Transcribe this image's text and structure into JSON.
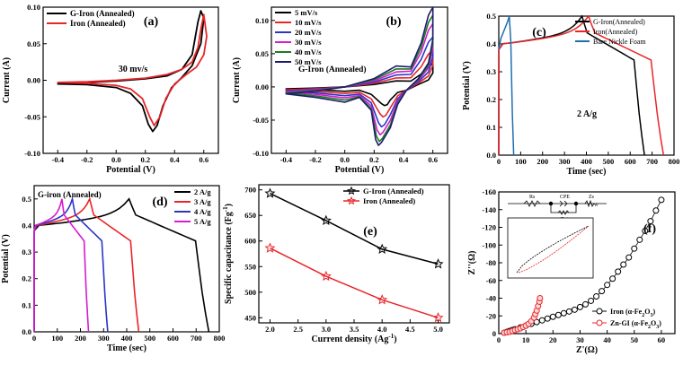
{
  "figure": {
    "description_title": "Electrochemical characterization panels"
  },
  "chart_data": [
    {
      "panel": "(a)",
      "type": "line",
      "subtype": "cv",
      "annotation": "30 mv/s",
      "xlabel": "Potential (V)",
      "ylabel": "Current (A)",
      "xlim": [
        -0.5,
        0.7
      ],
      "ylim": [
        -0.1,
        0.1
      ],
      "xticks": [
        -0.4,
        -0.2,
        0.0,
        0.2,
        0.4,
        0.6
      ],
      "xtick_labels": [
        "-0.4",
        "-0.2",
        "0.0",
        "0.2",
        "0.4",
        "0.6"
      ],
      "yticks": [
        -0.1,
        -0.05,
        0.0,
        0.05,
        0.1
      ],
      "ytick_labels": [
        "-0.10",
        "-0.05",
        "0.00",
        "0.05",
        "0.10"
      ],
      "legend": "top-left",
      "series": [
        {
          "name": "G-Iron (Annealed)",
          "color": "#000000",
          "x": [
            -0.4,
            -0.2,
            0.0,
            0.2,
            0.35,
            0.45,
            0.52,
            0.56,
            0.58,
            0.6,
            0.58,
            0.52,
            0.45,
            0.38,
            0.32,
            0.28,
            0.25,
            0.22,
            0.18,
            0.1,
            0.0,
            -0.2,
            -0.4
          ],
          "y": [
            -0.005,
            -0.003,
            -0.001,
            0.002,
            0.006,
            0.015,
            0.035,
            0.08,
            0.095,
            0.085,
            0.05,
            0.02,
            0.004,
            -0.01,
            -0.035,
            -0.062,
            -0.07,
            -0.06,
            -0.035,
            -0.018,
            -0.01,
            -0.006,
            -0.005
          ]
        },
        {
          "name": "Iron (Annealed)",
          "color": "#e8262a",
          "x": [
            -0.4,
            -0.2,
            0.0,
            0.2,
            0.35,
            0.45,
            0.52,
            0.56,
            0.58,
            0.6,
            0.62,
            0.6,
            0.55,
            0.48,
            0.4,
            0.34,
            0.3,
            0.26,
            0.23,
            0.18,
            0.1,
            0.0,
            -0.2,
            -0.4
          ],
          "y": [
            -0.003,
            -0.002,
            0.0,
            0.003,
            0.008,
            0.015,
            0.025,
            0.045,
            0.07,
            0.09,
            0.06,
            0.035,
            0.018,
            0.008,
            -0.005,
            -0.025,
            -0.05,
            -0.062,
            -0.05,
            -0.025,
            -0.012,
            -0.007,
            -0.004,
            -0.003
          ]
        }
      ]
    },
    {
      "panel": "(b)",
      "type": "line",
      "subtype": "cv",
      "annotation": "G-Iron (Annealed)",
      "xlabel": "Potential (V)",
      "ylabel": "Current (A)",
      "xlim": [
        -0.5,
        0.7
      ],
      "ylim": [
        -0.1,
        0.12
      ],
      "xticks": [
        -0.4,
        -0.2,
        0.0,
        0.2,
        0.4,
        0.6
      ],
      "xtick_labels": [
        "-0.4",
        "-0.2",
        "0.0",
        "0.2",
        "0.4",
        "0.6"
      ],
      "yticks": [
        -0.1,
        -0.05,
        0.0,
        0.05,
        0.1
      ],
      "ytick_labels": [
        "-0.10",
        "-0.05",
        "0.00",
        "0.05",
        "0.10"
      ],
      "legend": "top-left",
      "series": [
        {
          "name": "5 mV/s",
          "color": "#000000",
          "peak_anodic": 0.035,
          "peak_cathodic": -0.028,
          "cathodic_x": 0.27
        },
        {
          "name": "10 mV/s",
          "color": "#e8262a",
          "peak_anodic": 0.055,
          "peak_cathodic": -0.045,
          "cathodic_x": 0.26
        },
        {
          "name": "20 mV/s",
          "color": "#2b35c8",
          "peak_anodic": 0.075,
          "peak_cathodic": -0.06,
          "cathodic_x": 0.25
        },
        {
          "name": "30 mV/s",
          "color": "#d61bd1",
          "peak_anodic": 0.095,
          "peak_cathodic": -0.072,
          "cathodic_x": 0.24
        },
        {
          "name": "40 mV/s",
          "color": "#1f7a1f",
          "peak_anodic": 0.108,
          "peak_cathodic": -0.082,
          "cathodic_x": 0.235
        },
        {
          "name": "50 mV/s",
          "color": "#1c1c6e",
          "peak_anodic": 0.12,
          "peak_cathodic": -0.088,
          "cathodic_x": 0.23
        }
      ]
    },
    {
      "panel": "(c)",
      "type": "line",
      "subtype": "gcd",
      "annotation": "2 A/g",
      "xlabel": "Time (sec)",
      "ylabel": "Potential (V)",
      "xlim": [
        0,
        800
      ],
      "ylim": [
        0,
        0.5
      ],
      "xticks": [
        0,
        100,
        200,
        300,
        400,
        500,
        600,
        700,
        800
      ],
      "xtick_labels": [
        "0",
        "100",
        "200",
        "300",
        "400",
        "500",
        "600",
        "700",
        "800"
      ],
      "yticks": [
        0.0,
        0.1,
        0.2,
        0.3,
        0.4,
        0.5
      ],
      "ytick_labels": [
        "0.0",
        "0.1",
        "0.2",
        "0.3",
        "0.4",
        "0.5"
      ],
      "legend": "top-right",
      "series": [
        {
          "name": "G-Iron(Annealed)",
          "color": "#000000",
          "charge_end": 380,
          "discharge_end": 665
        },
        {
          "name": "Iron(Annealed)",
          "color": "#e8262a",
          "charge_end": 410,
          "discharge_end": 752
        },
        {
          "name": "Bare Nickle Foam",
          "color": "#1f6fae",
          "charge_end": 48,
          "discharge_end": 68
        }
      ]
    },
    {
      "panel": "(d)",
      "type": "line",
      "subtype": "gcd",
      "annotation": "G-iron (Annealed)",
      "xlabel": "Time (sec)",
      "ylabel": "Potential (V)",
      "xlim": [
        0,
        800
      ],
      "ylim": [
        0,
        0.55
      ],
      "xticks": [
        0,
        100,
        200,
        300,
        400,
        500,
        600,
        700,
        800
      ],
      "xtick_labels": [
        "0",
        "100",
        "200",
        "300",
        "400",
        "500",
        "600",
        "700",
        "800"
      ],
      "yticks": [
        0.0,
        0.1,
        0.2,
        0.3,
        0.4,
        0.5
      ],
      "ytick_labels": [
        "0.0",
        "0.1",
        "0.2",
        "0.3",
        "0.4",
        "0.5"
      ],
      "legend": "top-right",
      "series": [
        {
          "name": "2 A/g",
          "color": "#000000",
          "charge_end": 410,
          "discharge_end": 755
        },
        {
          "name": "3 A/g",
          "color": "#e8262a",
          "charge_end": 240,
          "discharge_end": 452
        },
        {
          "name": "4 A/g",
          "color": "#2b35c8",
          "charge_end": 165,
          "discharge_end": 318
        },
        {
          "name": "5 A/g",
          "color": "#d61bd1",
          "charge_end": 120,
          "discharge_end": 235
        }
      ]
    },
    {
      "panel": "(e)",
      "type": "line",
      "subtype": "capacitance",
      "xlabel": "Current density (Ag",
      "xlabel_sup": "-1",
      "xlabel_end": ")",
      "ylabel": "Specific capacitance (Fg",
      "ylabel_sup": "-1",
      "ylabel_end": ")",
      "xlim": [
        1.8,
        5.2
      ],
      "ylim": [
        440,
        710
      ],
      "xticks": [
        2.0,
        2.5,
        3.0,
        3.5,
        4.0,
        4.5,
        5.0
      ],
      "xtick_labels": [
        "2.0",
        "2.5",
        "3.0",
        "3.5",
        "4.0",
        "4.5",
        "5.0"
      ],
      "yticks": [
        450,
        500,
        550,
        600,
        650,
        700
      ],
      "ytick_labels": [
        "450",
        "500",
        "550",
        "600",
        "650",
        "700"
      ],
      "legend": "top-right",
      "series": [
        {
          "name": "G-Iron (Annealed)",
          "color": "#000000",
          "x": [
            2,
            3,
            4,
            5
          ],
          "y": [
            693,
            640,
            584,
            555
          ]
        },
        {
          "name": "Iron (Annealed)",
          "color": "#e8262a",
          "x": [
            2,
            3,
            4,
            5
          ],
          "y": [
            586,
            531,
            485,
            450
          ]
        }
      ]
    },
    {
      "panel": "(f)",
      "type": "scatter",
      "subtype": "nyquist",
      "xlabel": "Z'(Ω)",
      "ylabel": "Z''(Ω)",
      "xlim": [
        0,
        65
      ],
      "ylim": [
        0,
        -160
      ],
      "xticks": [
        0,
        10,
        20,
        30,
        40,
        50,
        60
      ],
      "xtick_labels": [
        "0",
        "10",
        "20",
        "30",
        "40",
        "50",
        "60"
      ],
      "yticks": [
        0,
        -20,
        -40,
        -60,
        -80,
        -100,
        -120,
        -140,
        -160
      ],
      "ytick_labels": [
        "0",
        "-20",
        "-40",
        "-60",
        "-80",
        "-100",
        "-120",
        "-140",
        "-160"
      ],
      "legend": "bottom-right",
      "circuit_labels": [
        "Rs",
        "CPE",
        "Rct",
        "Zs",
        "W"
      ],
      "series": [
        {
          "name": "Iron (α-Fe",
          "name_sub": "2",
          "name_mid": "O",
          "name_sub2": "3",
          "name_end": ")",
          "color": "#000000",
          "x": [
            2,
            3,
            4,
            5,
            6,
            8,
            10,
            12,
            14,
            16,
            18,
            20,
            22,
            24,
            26,
            28,
            30,
            32,
            34,
            36,
            38,
            40,
            42,
            44,
            46,
            48,
            50,
            52,
            54,
            56,
            58,
            60
          ],
          "y": [
            -1,
            -2,
            -3,
            -4,
            -5,
            -7,
            -9,
            -11,
            -13,
            -15,
            -17,
            -19,
            -21,
            -23,
            -25,
            -27,
            -30,
            -33,
            -37,
            -42,
            -48,
            -55,
            -62,
            -70,
            -78,
            -86,
            -96,
            -106,
            -116,
            -127,
            -139,
            -151
          ]
        },
        {
          "name": "Zn-GI (α-Fe",
          "name_sub": "2",
          "name_mid": "O",
          "name_sub2": "3",
          "name_end": ")",
          "color": "#e8262a",
          "x": [
            2,
            3,
            4,
            5,
            6,
            7,
            8,
            9,
            10,
            11,
            12,
            13,
            13.5,
            14,
            14.5,
            15,
            15.2
          ],
          "y": [
            -1,
            -1.5,
            -2,
            -3,
            -4,
            -5,
            -6,
            -7.5,
            -9,
            -11,
            -14,
            -18,
            -22,
            -26,
            -31,
            -36,
            -40
          ]
        }
      ]
    }
  ]
}
